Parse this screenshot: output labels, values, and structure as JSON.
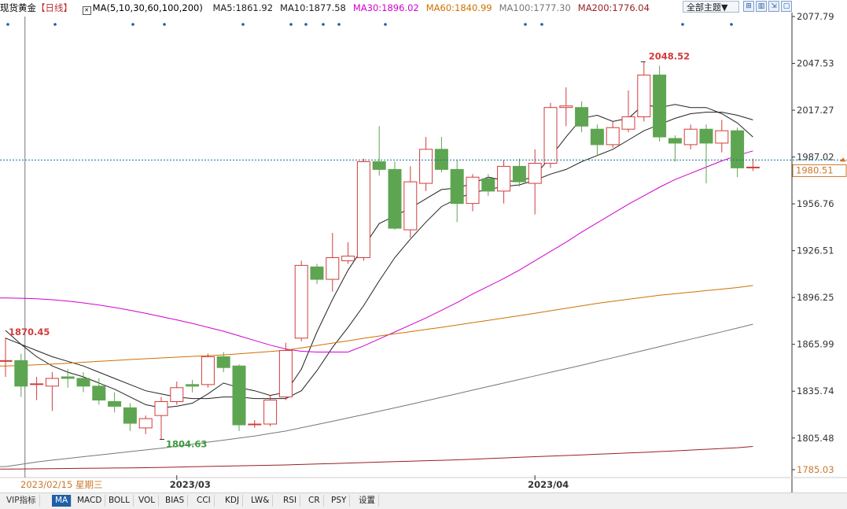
{
  "legend": {
    "instrument": "现货黄金",
    "period": "【日线】",
    "ma_title": "MA(5,10,30,60,100,200)",
    "items": [
      {
        "label": "MA5:1861.92",
        "color": "#222222"
      },
      {
        "label": "MA10:1877.58",
        "color": "#222222"
      },
      {
        "label": "MA30:1896.02",
        "color": "#d000d0"
      },
      {
        "label": "MA60:1840.99",
        "color": "#d07000"
      },
      {
        "label": "MA100:1777.30",
        "color": "#777777"
      },
      {
        "label": "MA200:1776.04",
        "color": "#9a2020"
      }
    ]
  },
  "toolbar": {
    "theme_label": "全部主题▼",
    "buttons": [
      {
        "name": "fullscreen-icon",
        "glyph": "⊞"
      },
      {
        "name": "split-icon",
        "glyph": "▥"
      },
      {
        "name": "export-icon",
        "glyph": "⇲"
      },
      {
        "name": "window-icon",
        "glyph": "▢"
      }
    ]
  },
  "tabs": {
    "items": [
      "VIP指标",
      "MA",
      "MACD",
      "BOLL",
      "VOL",
      "BIAS",
      "CCI",
      "KDJ",
      "LW&",
      "RSI",
      "CR",
      "PSY",
      "设置"
    ],
    "active": "MA"
  },
  "colors": {
    "up": "#d23c3c",
    "down": "#5ea552",
    "grid": "#e8e8e8",
    "axis": "#444444",
    "price_line": "#1a6d9c",
    "last_price_label": "#c8782c"
  },
  "chart_data": {
    "type": "candlestick",
    "title": "现货黄金 【日线】",
    "ylim": [
      1785.03,
      2077.79
    ],
    "yticks": [
      "2077.79",
      "2047.53",
      "2017.27",
      "1987.02",
      "1956.76",
      "1926.51",
      "1896.25",
      "1865.99",
      "1835.74",
      "1805.48",
      "1785.03"
    ],
    "x_month_labels": [
      {
        "index": 11,
        "label": "2023/03"
      },
      {
        "index": 34,
        "label": "2023/04"
      }
    ],
    "crosshair_date": "2023/02/15 星期三",
    "last_price": "1980.51",
    "annotations": {
      "high": {
        "index": 41,
        "label": "2048.52"
      },
      "low": {
        "index": 10,
        "label": "1804.63"
      },
      "left": {
        "index": 0,
        "label": "1870.45"
      }
    },
    "candles": [
      {
        "o": 1855.0,
        "h": 1870.5,
        "l": 1845.0,
        "c": 1855.5
      },
      {
        "o": 1855.5,
        "h": 1860.0,
        "l": 1832.0,
        "c": 1839.0
      },
      {
        "o": 1840.0,
        "h": 1845.0,
        "l": 1830.0,
        "c": 1840.5
      },
      {
        "o": 1839.0,
        "h": 1848.0,
        "l": 1823.0,
        "c": 1844.0
      },
      {
        "o": 1845.0,
        "h": 1850.0,
        "l": 1838.0,
        "c": 1844.0
      },
      {
        "o": 1844.0,
        "h": 1848.0,
        "l": 1835.0,
        "c": 1839.0
      },
      {
        "o": 1839.0,
        "h": 1844.0,
        "l": 1827.0,
        "c": 1830.0
      },
      {
        "o": 1829.0,
        "h": 1835.0,
        "l": 1822.0,
        "c": 1826.0
      },
      {
        "o": 1825.0,
        "h": 1828.0,
        "l": 1810.0,
        "c": 1815.0
      },
      {
        "o": 1812.0,
        "h": 1820.0,
        "l": 1808.0,
        "c": 1818.0
      },
      {
        "o": 1820.0,
        "h": 1832.0,
        "l": 1804.6,
        "c": 1829.0
      },
      {
        "o": 1829.0,
        "h": 1842.0,
        "l": 1827.0,
        "c": 1838.0
      },
      {
        "o": 1840.0,
        "h": 1843.0,
        "l": 1835.0,
        "c": 1839.0
      },
      {
        "o": 1840.0,
        "h": 1860.0,
        "l": 1838.0,
        "c": 1858.0
      },
      {
        "o": 1858.0,
        "h": 1861.0,
        "l": 1848.0,
        "c": 1851.0
      },
      {
        "o": 1852.0,
        "h": 1853.0,
        "l": 1810.0,
        "c": 1814.0
      },
      {
        "o": 1814.0,
        "h": 1817.0,
        "l": 1812.0,
        "c": 1814.5
      },
      {
        "o": 1814.5,
        "h": 1833.0,
        "l": 1813.0,
        "c": 1830.0
      },
      {
        "o": 1832.0,
        "h": 1867.0,
        "l": 1830.0,
        "c": 1862.0
      },
      {
        "o": 1870.0,
        "h": 1920.0,
        "l": 1868.0,
        "c": 1917.0
      },
      {
        "o": 1916.0,
        "h": 1918.0,
        "l": 1905.0,
        "c": 1908.0
      },
      {
        "o": 1908.0,
        "h": 1938.0,
        "l": 1900.0,
        "c": 1922.0
      },
      {
        "o": 1920.0,
        "h": 1932.0,
        "l": 1918.0,
        "c": 1923.0
      },
      {
        "o": 1922.0,
        "h": 1986.0,
        "l": 1920.0,
        "c": 1984.0
      },
      {
        "o": 1984.0,
        "h": 2007.0,
        "l": 1975.0,
        "c": 1979.0
      },
      {
        "o": 1979.0,
        "h": 1984.0,
        "l": 1940.0,
        "c": 1941.0
      },
      {
        "o": 1940.0,
        "h": 1981.0,
        "l": 1935.0,
        "c": 1971.0
      },
      {
        "o": 1970.0,
        "h": 2000.0,
        "l": 1965.0,
        "c": 1992.0
      },
      {
        "o": 1992.0,
        "h": 2000.0,
        "l": 1977.0,
        "c": 1979.0
      },
      {
        "o": 1979.0,
        "h": 1985.0,
        "l": 1945.0,
        "c": 1957.0
      },
      {
        "o": 1957.0,
        "h": 1976.0,
        "l": 1952.0,
        "c": 1974.0
      },
      {
        "o": 1973.0,
        "h": 1976.0,
        "l": 1962.0,
        "c": 1965.0
      },
      {
        "o": 1965.0,
        "h": 1985.0,
        "l": 1957.0,
        "c": 1981.0
      },
      {
        "o": 1981.0,
        "h": 1986.0,
        "l": 1968.0,
        "c": 1971.0
      },
      {
        "o": 1970.0,
        "h": 1992.0,
        "l": 1950.0,
        "c": 1983.0
      },
      {
        "o": 1983.0,
        "h": 2022.0,
        "l": 1980.0,
        "c": 2019.0
      },
      {
        "o": 2019.0,
        "h": 2032.0,
        "l": 2007.0,
        "c": 2020.0
      },
      {
        "o": 2019.0,
        "h": 2023.0,
        "l": 2003.0,
        "c": 2007.0
      },
      {
        "o": 2005.0,
        "h": 2008.0,
        "l": 1988.0,
        "c": 1995.0
      },
      {
        "o": 1995.0,
        "h": 2010.0,
        "l": 1993.0,
        "c": 2006.0
      },
      {
        "o": 2005.0,
        "h": 2030.0,
        "l": 2003.0,
        "c": 2013.0
      },
      {
        "o": 2013.0,
        "h": 2048.5,
        "l": 2010.0,
        "c": 2040.0
      },
      {
        "o": 2040.0,
        "h": 2046.0,
        "l": 1997.0,
        "c": 2000.0
      },
      {
        "o": 1999.0,
        "h": 2001.0,
        "l": 1984.0,
        "c": 1996.0
      },
      {
        "o": 1995.0,
        "h": 2008.0,
        "l": 1992.0,
        "c": 2005.0
      },
      {
        "o": 2005.0,
        "h": 2008.0,
        "l": 1970.0,
        "c": 1996.0
      },
      {
        "o": 1996.0,
        "h": 2011.0,
        "l": 1990.0,
        "c": 2004.0
      },
      {
        "o": 2004.0,
        "h": 2006.0,
        "l": 1974.0,
        "c": 1980.0
      },
      {
        "o": 1980.0,
        "h": 1986.0,
        "l": 1978.0,
        "c": 1980.5
      }
    ],
    "ma_lines": [
      {
        "name": "MA5",
        "color": "#222222",
        "values": [
          1875,
          1866,
          1858,
          1852,
          1848,
          1845,
          1841,
          1837,
          1832,
          1827,
          1825,
          1826,
          1828,
          1834,
          1841,
          1838,
          1836,
          1833,
          1835,
          1850,
          1874,
          1895,
          1914,
          1929,
          1944,
          1949,
          1954,
          1960,
          1966,
          1967,
          1970,
          1974,
          1972,
          1971,
          1975,
          1987,
          2000,
          2012,
          2014,
          2010,
          2012,
          2021,
          2019,
          2021,
          2019,
          2019,
          2015,
          2009,
          2000
        ]
      },
      {
        "name": "MA10",
        "color": "#222222",
        "values": [
          1870,
          1866,
          1862,
          1858,
          1855,
          1852,
          1848,
          1844,
          1840,
          1836,
          1834,
          1832,
          1831,
          1831,
          1832,
          1832,
          1831,
          1831,
          1831,
          1836,
          1849,
          1864,
          1877,
          1891,
          1907,
          1922,
          1934,
          1945,
          1955,
          1960,
          1964,
          1966,
          1968,
          1969,
          1972,
          1976,
          1979,
          1984,
          1988,
          1992,
          1998,
          2004,
          2008,
          2012,
          2015,
          2016,
          2016,
          2014,
          2011
        ]
      },
      {
        "name": "MA30",
        "color": "#d000d0",
        "values": [
          1896,
          1895.8,
          1895.4,
          1894.8,
          1893.9,
          1892.8,
          1891.4,
          1889.8,
          1888,
          1886,
          1883.9,
          1881.8,
          1879.5,
          1877,
          1874.5,
          1871.5,
          1868.5,
          1865.5,
          1863,
          1861.5,
          1861,
          1861,
          1861,
          1865,
          1869.5,
          1874,
          1878.5,
          1883,
          1888,
          1893,
          1898.5,
          1903.5,
          1908.5,
          1914,
          1920,
          1926,
          1932,
          1938.5,
          1944.5,
          1950.5,
          1956.5,
          1962,
          1967.5,
          1972.5,
          1976.5,
          1980.5,
          1984.5,
          1988,
          1991
        ]
      },
      {
        "name": "MA60",
        "color": "#d07000",
        "values": [
          1852,
          1852.4,
          1852.8,
          1853.3,
          1853.8,
          1854.4,
          1855,
          1855.6,
          1856.2,
          1856.7,
          1857.2,
          1857.7,
          1858.2,
          1858.7,
          1859.2,
          1859.9,
          1860.6,
          1861.4,
          1862.2,
          1863.7,
          1865.3,
          1866.8,
          1868.3,
          1869.9,
          1871.4,
          1872.8,
          1874.2,
          1875.6,
          1877,
          1878.5,
          1880,
          1881.5,
          1883,
          1884.5,
          1886,
          1887.7,
          1889.3,
          1890.9,
          1892.5,
          1893.8,
          1895.1,
          1896.4,
          1897.7,
          1898.7,
          1899.7,
          1900.7,
          1901.7,
          1902.7,
          1904
        ]
      },
      {
        "name": "MA100",
        "color": "#777777",
        "values": [
          1787,
          1788.5,
          1790,
          1791.2,
          1792.3,
          1793.4,
          1794.5,
          1795.6,
          1796.7,
          1797.8,
          1798.9,
          1800.2,
          1801.5,
          1802.8,
          1804.1,
          1805.4,
          1806.8,
          1808.4,
          1810,
          1812.1,
          1814.2,
          1816.3,
          1818.4,
          1820.6,
          1822.8,
          1825,
          1827.2,
          1829.5,
          1831.8,
          1834.1,
          1836.4,
          1838.7,
          1841,
          1843.3,
          1845.6,
          1847.9,
          1850.2,
          1852.5,
          1854.9,
          1857.3,
          1859.7,
          1862.1,
          1864.5,
          1866.9,
          1869.3,
          1871.7,
          1874.1,
          1876.5,
          1879
        ]
      },
      {
        "name": "MA200",
        "color": "#9a2020",
        "values": [
          1785.4,
          1785.5,
          1785.6,
          1785.7,
          1785.8,
          1785.9,
          1786,
          1786.1,
          1786.2,
          1786.3,
          1786.5,
          1786.7,
          1786.9,
          1787.1,
          1787.3,
          1787.5,
          1787.7,
          1787.9,
          1788.1,
          1788.4,
          1788.7,
          1789,
          1789.3,
          1789.6,
          1789.9,
          1790.2,
          1790.5,
          1790.8,
          1791.1,
          1791.4,
          1791.8,
          1792.2,
          1792.6,
          1793,
          1793.4,
          1793.8,
          1794.2,
          1794.6,
          1795,
          1795.4,
          1795.8,
          1796.2,
          1796.7,
          1797.2,
          1797.7,
          1798.2,
          1798.7,
          1799.2,
          1800
        ]
      }
    ]
  }
}
